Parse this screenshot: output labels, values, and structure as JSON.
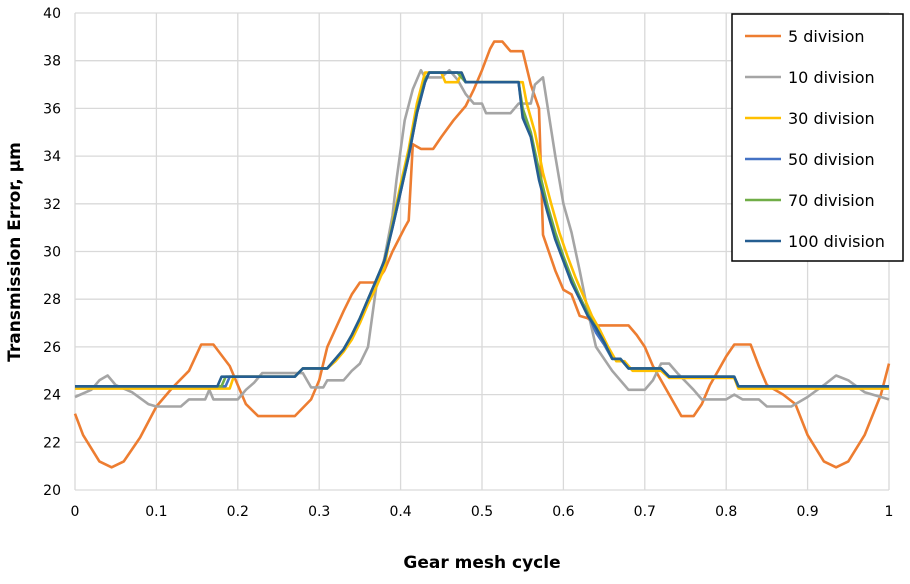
{
  "chart_data": {
    "type": "line",
    "title": "",
    "xlabel": "Gear mesh cycle",
    "ylabel": "Transmission Error, µm",
    "xlim": [
      0,
      1
    ],
    "ylim": [
      20,
      40
    ],
    "xticks": [
      "0",
      "0.1",
      "0.2",
      "0.3",
      "0.4",
      "0.5",
      "0.6",
      "0.7",
      "0.8",
      "0.9",
      "1"
    ],
    "yticks": [
      "20",
      "22",
      "24",
      "26",
      "28",
      "30",
      "32",
      "34",
      "36",
      "38",
      "40"
    ],
    "grid": true,
    "legend_position": "top-right",
    "series": [
      {
        "name": "5 division",
        "color": "#ED7D31",
        "points": [
          [
            0,
            23.2
          ],
          [
            0.01,
            22.3
          ],
          [
            0.03,
            21.2
          ],
          [
            0.045,
            20.95
          ],
          [
            0.06,
            21.2
          ],
          [
            0.08,
            22.2
          ],
          [
            0.1,
            23.5
          ],
          [
            0.12,
            24.3
          ],
          [
            0.14,
            25.0
          ],
          [
            0.155,
            26.1
          ],
          [
            0.17,
            26.1
          ],
          [
            0.19,
            25.2
          ],
          [
            0.2,
            24.4
          ],
          [
            0.21,
            23.6
          ],
          [
            0.225,
            23.1
          ],
          [
            0.27,
            23.1
          ],
          [
            0.29,
            23.8
          ],
          [
            0.3,
            24.6
          ],
          [
            0.31,
            26.0
          ],
          [
            0.33,
            27.5
          ],
          [
            0.34,
            28.2
          ],
          [
            0.35,
            28.7
          ],
          [
            0.37,
            28.7
          ],
          [
            0.38,
            29.2
          ],
          [
            0.39,
            30.0
          ],
          [
            0.405,
            31.0
          ],
          [
            0.41,
            31.3
          ],
          [
            0.415,
            34.5
          ],
          [
            0.425,
            34.3
          ],
          [
            0.44,
            34.3
          ],
          [
            0.45,
            34.8
          ],
          [
            0.465,
            35.5
          ],
          [
            0.48,
            36.1
          ],
          [
            0.49,
            36.8
          ],
          [
            0.5,
            37.6
          ],
          [
            0.51,
            38.5
          ],
          [
            0.515,
            38.8
          ],
          [
            0.525,
            38.8
          ],
          [
            0.535,
            38.4
          ],
          [
            0.55,
            38.4
          ],
          [
            0.56,
            37.0
          ],
          [
            0.57,
            36.0
          ],
          [
            0.575,
            30.7
          ],
          [
            0.59,
            29.2
          ],
          [
            0.6,
            28.4
          ],
          [
            0.61,
            28.2
          ],
          [
            0.62,
            27.3
          ],
          [
            0.63,
            27.2
          ],
          [
            0.64,
            26.9
          ],
          [
            0.68,
            26.9
          ],
          [
            0.69,
            26.5
          ],
          [
            0.7,
            26.0
          ],
          [
            0.71,
            25.2
          ],
          [
            0.73,
            24.0
          ],
          [
            0.745,
            23.1
          ],
          [
            0.76,
            23.1
          ],
          [
            0.77,
            23.6
          ],
          [
            0.78,
            24.4
          ],
          [
            0.79,
            25.0
          ],
          [
            0.8,
            25.6
          ],
          [
            0.81,
            26.1
          ],
          [
            0.83,
            26.1
          ],
          [
            0.84,
            25.2
          ],
          [
            0.85,
            24.4
          ],
          [
            0.87,
            24.0
          ],
          [
            0.885,
            23.6
          ],
          [
            0.9,
            22.3
          ],
          [
            0.92,
            21.2
          ],
          [
            0.935,
            20.95
          ],
          [
            0.95,
            21.2
          ],
          [
            0.97,
            22.3
          ],
          [
            0.99,
            24.0
          ],
          [
            1.0,
            25.3
          ]
        ]
      },
      {
        "name": "10 division",
        "color": "#A5A5A5",
        "points": [
          [
            0,
            23.9
          ],
          [
            0.02,
            24.2
          ],
          [
            0.03,
            24.6
          ],
          [
            0.04,
            24.8
          ],
          [
            0.05,
            24.4
          ],
          [
            0.07,
            24.1
          ],
          [
            0.09,
            23.6
          ],
          [
            0.1,
            23.5
          ],
          [
            0.13,
            23.5
          ],
          [
            0.14,
            23.8
          ],
          [
            0.16,
            23.8
          ],
          [
            0.165,
            24.2
          ],
          [
            0.17,
            23.8
          ],
          [
            0.2,
            23.8
          ],
          [
            0.21,
            24.2
          ],
          [
            0.22,
            24.5
          ],
          [
            0.23,
            24.9
          ],
          [
            0.28,
            24.9
          ],
          [
            0.29,
            24.3
          ],
          [
            0.305,
            24.3
          ],
          [
            0.31,
            24.6
          ],
          [
            0.33,
            24.6
          ],
          [
            0.34,
            25.0
          ],
          [
            0.35,
            25.3
          ],
          [
            0.36,
            26.0
          ],
          [
            0.37,
            28.5
          ],
          [
            0.38,
            29.7
          ],
          [
            0.39,
            31.5
          ],
          [
            0.395,
            33.0
          ],
          [
            0.405,
            35.5
          ],
          [
            0.415,
            36.8
          ],
          [
            0.425,
            37.6
          ],
          [
            0.43,
            37.3
          ],
          [
            0.45,
            37.3
          ],
          [
            0.46,
            37.6
          ],
          [
            0.47,
            37.2
          ],
          [
            0.48,
            36.6
          ],
          [
            0.49,
            36.2
          ],
          [
            0.5,
            36.2
          ],
          [
            0.505,
            35.8
          ],
          [
            0.535,
            35.8
          ],
          [
            0.545,
            36.2
          ],
          [
            0.56,
            36.2
          ],
          [
            0.565,
            37.0
          ],
          [
            0.575,
            37.3
          ],
          [
            0.58,
            36.2
          ],
          [
            0.59,
            34.0
          ],
          [
            0.6,
            32.0
          ],
          [
            0.61,
            30.8
          ],
          [
            0.62,
            29.2
          ],
          [
            0.63,
            27.5
          ],
          [
            0.64,
            26.0
          ],
          [
            0.66,
            25.0
          ],
          [
            0.68,
            24.2
          ],
          [
            0.7,
            24.2
          ],
          [
            0.71,
            24.6
          ],
          [
            0.72,
            25.3
          ],
          [
            0.73,
            25.3
          ],
          [
            0.74,
            24.9
          ],
          [
            0.76,
            24.2
          ],
          [
            0.77,
            23.8
          ],
          [
            0.8,
            23.8
          ],
          [
            0.81,
            24.0
          ],
          [
            0.82,
            23.8
          ],
          [
            0.84,
            23.8
          ],
          [
            0.85,
            23.5
          ],
          [
            0.88,
            23.5
          ],
          [
            0.9,
            23.9
          ],
          [
            0.92,
            24.4
          ],
          [
            0.935,
            24.8
          ],
          [
            0.95,
            24.6
          ],
          [
            0.97,
            24.1
          ],
          [
            1.0,
            23.8
          ]
        ]
      },
      {
        "name": "30 division",
        "color": "#FFC000",
        "points": [
          [
            0,
            24.25
          ],
          [
            0.19,
            24.25
          ],
          [
            0.195,
            24.75
          ],
          [
            0.27,
            24.75
          ],
          [
            0.28,
            25.1
          ],
          [
            0.31,
            25.1
          ],
          [
            0.32,
            25.4
          ],
          [
            0.33,
            25.8
          ],
          [
            0.34,
            26.3
          ],
          [
            0.35,
            27.0
          ],
          [
            0.36,
            27.8
          ],
          [
            0.37,
            28.5
          ],
          [
            0.38,
            29.3
          ],
          [
            0.39,
            31.2
          ],
          [
            0.4,
            32.8
          ],
          [
            0.41,
            34.3
          ],
          [
            0.42,
            36.2
          ],
          [
            0.43,
            37.5
          ],
          [
            0.45,
            37.5
          ],
          [
            0.455,
            37.1
          ],
          [
            0.47,
            37.1
          ],
          [
            0.475,
            37.5
          ],
          [
            0.48,
            37.1
          ],
          [
            0.55,
            37.1
          ],
          [
            0.555,
            36.2
          ],
          [
            0.565,
            35.0
          ],
          [
            0.575,
            33.3
          ],
          [
            0.585,
            32.0
          ],
          [
            0.595,
            30.8
          ],
          [
            0.605,
            29.8
          ],
          [
            0.615,
            28.9
          ],
          [
            0.625,
            28.1
          ],
          [
            0.635,
            27.3
          ],
          [
            0.645,
            26.7
          ],
          [
            0.655,
            26.0
          ],
          [
            0.665,
            25.4
          ],
          [
            0.675,
            25.4
          ],
          [
            0.685,
            25.0
          ],
          [
            0.72,
            25.0
          ],
          [
            0.73,
            24.7
          ],
          [
            0.81,
            24.7
          ],
          [
            0.815,
            24.25
          ],
          [
            1.0,
            24.25
          ]
        ]
      },
      {
        "name": "50 division",
        "color": "#4472C4",
        "points": [
          [
            0,
            24.35
          ],
          [
            0.185,
            24.35
          ],
          [
            0.19,
            24.75
          ],
          [
            0.27,
            24.75
          ],
          [
            0.28,
            25.1
          ],
          [
            0.31,
            25.1
          ],
          [
            0.32,
            25.5
          ],
          [
            0.33,
            25.9
          ],
          [
            0.34,
            26.5
          ],
          [
            0.35,
            27.2
          ],
          [
            0.36,
            28.0
          ],
          [
            0.37,
            28.8
          ],
          [
            0.38,
            29.6
          ],
          [
            0.39,
            31.0
          ],
          [
            0.4,
            32.5
          ],
          [
            0.41,
            34.0
          ],
          [
            0.42,
            35.8
          ],
          [
            0.43,
            37.1
          ],
          [
            0.435,
            37.5
          ],
          [
            0.47,
            37.5
          ],
          [
            0.48,
            37.1
          ],
          [
            0.545,
            37.1
          ],
          [
            0.55,
            35.8
          ],
          [
            0.56,
            34.9
          ],
          [
            0.57,
            33.2
          ],
          [
            0.58,
            31.8
          ],
          [
            0.59,
            30.6
          ],
          [
            0.6,
            29.7
          ],
          [
            0.61,
            28.8
          ],
          [
            0.62,
            28.1
          ],
          [
            0.63,
            27.4
          ],
          [
            0.64,
            26.6
          ],
          [
            0.65,
            26.1
          ],
          [
            0.66,
            25.5
          ],
          [
            0.67,
            25.5
          ],
          [
            0.68,
            25.1
          ],
          [
            0.72,
            25.1
          ],
          [
            0.73,
            24.75
          ],
          [
            0.81,
            24.75
          ],
          [
            0.815,
            24.35
          ],
          [
            1.0,
            24.35
          ]
        ]
      },
      {
        "name": "70 division",
        "color": "#70AD47",
        "points": [
          [
            0,
            24.35
          ],
          [
            0.18,
            24.35
          ],
          [
            0.185,
            24.75
          ],
          [
            0.27,
            24.75
          ],
          [
            0.28,
            25.1
          ],
          [
            0.31,
            25.1
          ],
          [
            0.32,
            25.5
          ],
          [
            0.33,
            25.9
          ],
          [
            0.34,
            26.5
          ],
          [
            0.35,
            27.2
          ],
          [
            0.36,
            28.0
          ],
          [
            0.37,
            28.8
          ],
          [
            0.38,
            29.6
          ],
          [
            0.39,
            31.1
          ],
          [
            0.4,
            32.6
          ],
          [
            0.41,
            34.1
          ],
          [
            0.42,
            35.9
          ],
          [
            0.43,
            37.2
          ],
          [
            0.435,
            37.5
          ],
          [
            0.47,
            37.5
          ],
          [
            0.48,
            37.1
          ],
          [
            0.545,
            37.1
          ],
          [
            0.55,
            36.0
          ],
          [
            0.56,
            35.0
          ],
          [
            0.57,
            33.4
          ],
          [
            0.58,
            32.0
          ],
          [
            0.59,
            30.8
          ],
          [
            0.6,
            29.8
          ],
          [
            0.61,
            28.9
          ],
          [
            0.62,
            28.1
          ],
          [
            0.63,
            27.4
          ],
          [
            0.64,
            26.8
          ],
          [
            0.65,
            26.2
          ],
          [
            0.66,
            25.5
          ],
          [
            0.67,
            25.5
          ],
          [
            0.68,
            25.1
          ],
          [
            0.72,
            25.1
          ],
          [
            0.73,
            24.75
          ],
          [
            0.81,
            24.75
          ],
          [
            0.815,
            24.35
          ],
          [
            1.0,
            24.35
          ]
        ]
      },
      {
        "name": "100 division",
        "color": "#255E91",
        "points": [
          [
            0,
            24.35
          ],
          [
            0.175,
            24.35
          ],
          [
            0.18,
            24.75
          ],
          [
            0.27,
            24.75
          ],
          [
            0.28,
            25.1
          ],
          [
            0.31,
            25.1
          ],
          [
            0.32,
            25.5
          ],
          [
            0.33,
            25.9
          ],
          [
            0.34,
            26.5
          ],
          [
            0.35,
            27.2
          ],
          [
            0.36,
            28.0
          ],
          [
            0.37,
            28.8
          ],
          [
            0.38,
            29.6
          ],
          [
            0.39,
            31.0
          ],
          [
            0.4,
            32.5
          ],
          [
            0.41,
            34.0
          ],
          [
            0.42,
            35.8
          ],
          [
            0.43,
            37.1
          ],
          [
            0.435,
            37.5
          ],
          [
            0.475,
            37.5
          ],
          [
            0.48,
            37.1
          ],
          [
            0.545,
            37.1
          ],
          [
            0.55,
            35.6
          ],
          [
            0.56,
            34.8
          ],
          [
            0.57,
            33.0
          ],
          [
            0.58,
            31.7
          ],
          [
            0.59,
            30.5
          ],
          [
            0.6,
            29.6
          ],
          [
            0.61,
            28.7
          ],
          [
            0.62,
            28.0
          ],
          [
            0.63,
            27.3
          ],
          [
            0.64,
            26.8
          ],
          [
            0.65,
            26.2
          ],
          [
            0.66,
            25.5
          ],
          [
            0.67,
            25.5
          ],
          [
            0.68,
            25.1
          ],
          [
            0.72,
            25.1
          ],
          [
            0.73,
            24.75
          ],
          [
            0.81,
            24.75
          ],
          [
            0.815,
            24.35
          ],
          [
            1.0,
            24.35
          ]
        ]
      }
    ]
  }
}
